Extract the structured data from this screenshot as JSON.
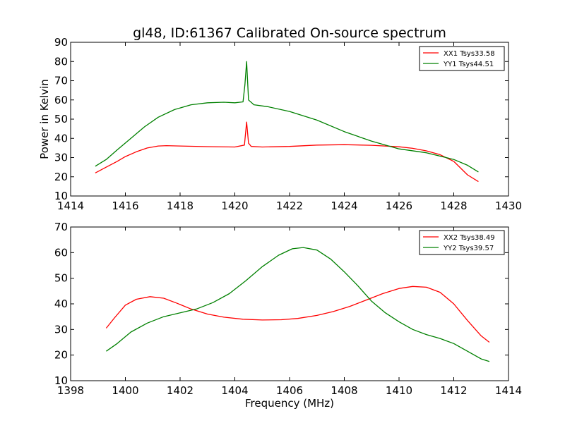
{
  "title": "gl48, ID:61367 Calibrated On-source spectrum",
  "chart_data": [
    {
      "type": "line",
      "title": "gl48, ID:61367 Calibrated On-source spectrum",
      "xlabel": "",
      "ylabel": "Power in Kelvin",
      "xlim": [
        1414,
        1430
      ],
      "ylim": [
        10,
        90
      ],
      "xticks": [
        1414,
        1416,
        1418,
        1420,
        1422,
        1424,
        1426,
        1428,
        1430
      ],
      "yticks": [
        10,
        20,
        30,
        40,
        50,
        60,
        70,
        80,
        90
      ],
      "legend_position": "top-right",
      "series": [
        {
          "name": "XX1 Tsys33.58",
          "color": "#ff0000",
          "points": [
            [
              1414.9,
              22.0
            ],
            [
              1415.3,
              25.0
            ],
            [
              1415.7,
              28.0
            ],
            [
              1416.0,
              30.5
            ],
            [
              1416.4,
              33.0
            ],
            [
              1416.8,
              35.0
            ],
            [
              1417.2,
              36.0
            ],
            [
              1417.5,
              36.2
            ],
            [
              1418.0,
              36.0
            ],
            [
              1419.0,
              35.7
            ],
            [
              1420.0,
              35.5
            ],
            [
              1420.35,
              36.5
            ],
            [
              1420.43,
              48.5
            ],
            [
              1420.5,
              37.5
            ],
            [
              1420.6,
              35.8
            ],
            [
              1421.0,
              35.5
            ],
            [
              1422.0,
              35.8
            ],
            [
              1423.0,
              36.5
            ],
            [
              1424.0,
              36.7
            ],
            [
              1425.0,
              36.4
            ],
            [
              1426.0,
              35.6
            ],
            [
              1426.5,
              34.8
            ],
            [
              1427.0,
              33.5
            ],
            [
              1427.5,
              31.5
            ],
            [
              1428.0,
              28.0
            ],
            [
              1428.5,
              21.0
            ],
            [
              1428.9,
              17.5
            ]
          ]
        },
        {
          "name": "YY1 Tsys44.51",
          "color": "#008000",
          "points": [
            [
              1414.9,
              25.5
            ],
            [
              1415.3,
              29.0
            ],
            [
              1415.7,
              34.0
            ],
            [
              1416.2,
              40.0
            ],
            [
              1416.7,
              46.0
            ],
            [
              1417.2,
              51.0
            ],
            [
              1417.8,
              55.0
            ],
            [
              1418.4,
              57.5
            ],
            [
              1419.0,
              58.5
            ],
            [
              1419.6,
              58.8
            ],
            [
              1420.0,
              58.5
            ],
            [
              1420.3,
              59.0
            ],
            [
              1420.37,
              68.0
            ],
            [
              1420.43,
              80.0
            ],
            [
              1420.5,
              60.0
            ],
            [
              1420.7,
              57.5
            ],
            [
              1421.2,
              56.5
            ],
            [
              1422.0,
              54.0
            ],
            [
              1423.0,
              49.5
            ],
            [
              1424.0,
              43.5
            ],
            [
              1425.0,
              38.5
            ],
            [
              1426.0,
              34.5
            ],
            [
              1427.0,
              32.5
            ],
            [
              1428.0,
              29.0
            ],
            [
              1428.5,
              26.0
            ],
            [
              1428.9,
              22.5
            ]
          ]
        }
      ]
    },
    {
      "type": "line",
      "title": "",
      "xlabel": "Frequency (MHz)",
      "ylabel": "",
      "xlim": [
        1398,
        1414
      ],
      "ylim": [
        10,
        70
      ],
      "xticks": [
        1398,
        1400,
        1402,
        1404,
        1406,
        1408,
        1410,
        1412,
        1414
      ],
      "yticks": [
        10,
        20,
        30,
        40,
        50,
        60,
        70
      ],
      "legend_position": "top-right",
      "series": [
        {
          "name": "XX2 Tsys38.49",
          "color": "#ff0000",
          "points": [
            [
              1399.3,
              30.5
            ],
            [
              1399.6,
              34.5
            ],
            [
              1400.0,
              39.5
            ],
            [
              1400.4,
              41.8
            ],
            [
              1400.9,
              42.8
            ],
            [
              1401.4,
              42.2
            ],
            [
              1401.9,
              40.2
            ],
            [
              1402.4,
              38.0
            ],
            [
              1403.0,
              36.0
            ],
            [
              1403.6,
              34.8
            ],
            [
              1404.3,
              34.0
            ],
            [
              1405.0,
              33.7
            ],
            [
              1405.7,
              33.8
            ],
            [
              1406.3,
              34.3
            ],
            [
              1407.0,
              35.5
            ],
            [
              1407.6,
              37.0
            ],
            [
              1408.2,
              39.0
            ],
            [
              1408.8,
              41.5
            ],
            [
              1409.4,
              44.0
            ],
            [
              1410.0,
              46.0
            ],
            [
              1410.5,
              46.8
            ],
            [
              1411.0,
              46.5
            ],
            [
              1411.5,
              44.5
            ],
            [
              1412.0,
              40.0
            ],
            [
              1412.5,
              33.5
            ],
            [
              1413.0,
              27.5
            ],
            [
              1413.3,
              25.0
            ]
          ]
        },
        {
          "name": "YY2 Tsys39.57",
          "color": "#008000",
          "points": [
            [
              1399.3,
              21.5
            ],
            [
              1399.7,
              24.5
            ],
            [
              1400.2,
              29.0
            ],
            [
              1400.8,
              32.5
            ],
            [
              1401.4,
              35.0
            ],
            [
              1402.0,
              36.5
            ],
            [
              1402.6,
              38.0
            ],
            [
              1403.2,
              40.5
            ],
            [
              1403.8,
              44.0
            ],
            [
              1404.4,
              49.0
            ],
            [
              1405.0,
              54.5
            ],
            [
              1405.6,
              59.0
            ],
            [
              1406.1,
              61.5
            ],
            [
              1406.5,
              62.0
            ],
            [
              1407.0,
              61.0
            ],
            [
              1407.5,
              57.5
            ],
            [
              1408.0,
              52.5
            ],
            [
              1408.5,
              47.0
            ],
            [
              1409.0,
              41.0
            ],
            [
              1409.5,
              36.5
            ],
            [
              1410.0,
              33.0
            ],
            [
              1410.5,
              30.0
            ],
            [
              1411.0,
              28.0
            ],
            [
              1411.5,
              26.5
            ],
            [
              1412.0,
              24.5
            ],
            [
              1412.5,
              21.5
            ],
            [
              1413.0,
              18.5
            ],
            [
              1413.3,
              17.5
            ]
          ]
        }
      ]
    }
  ]
}
